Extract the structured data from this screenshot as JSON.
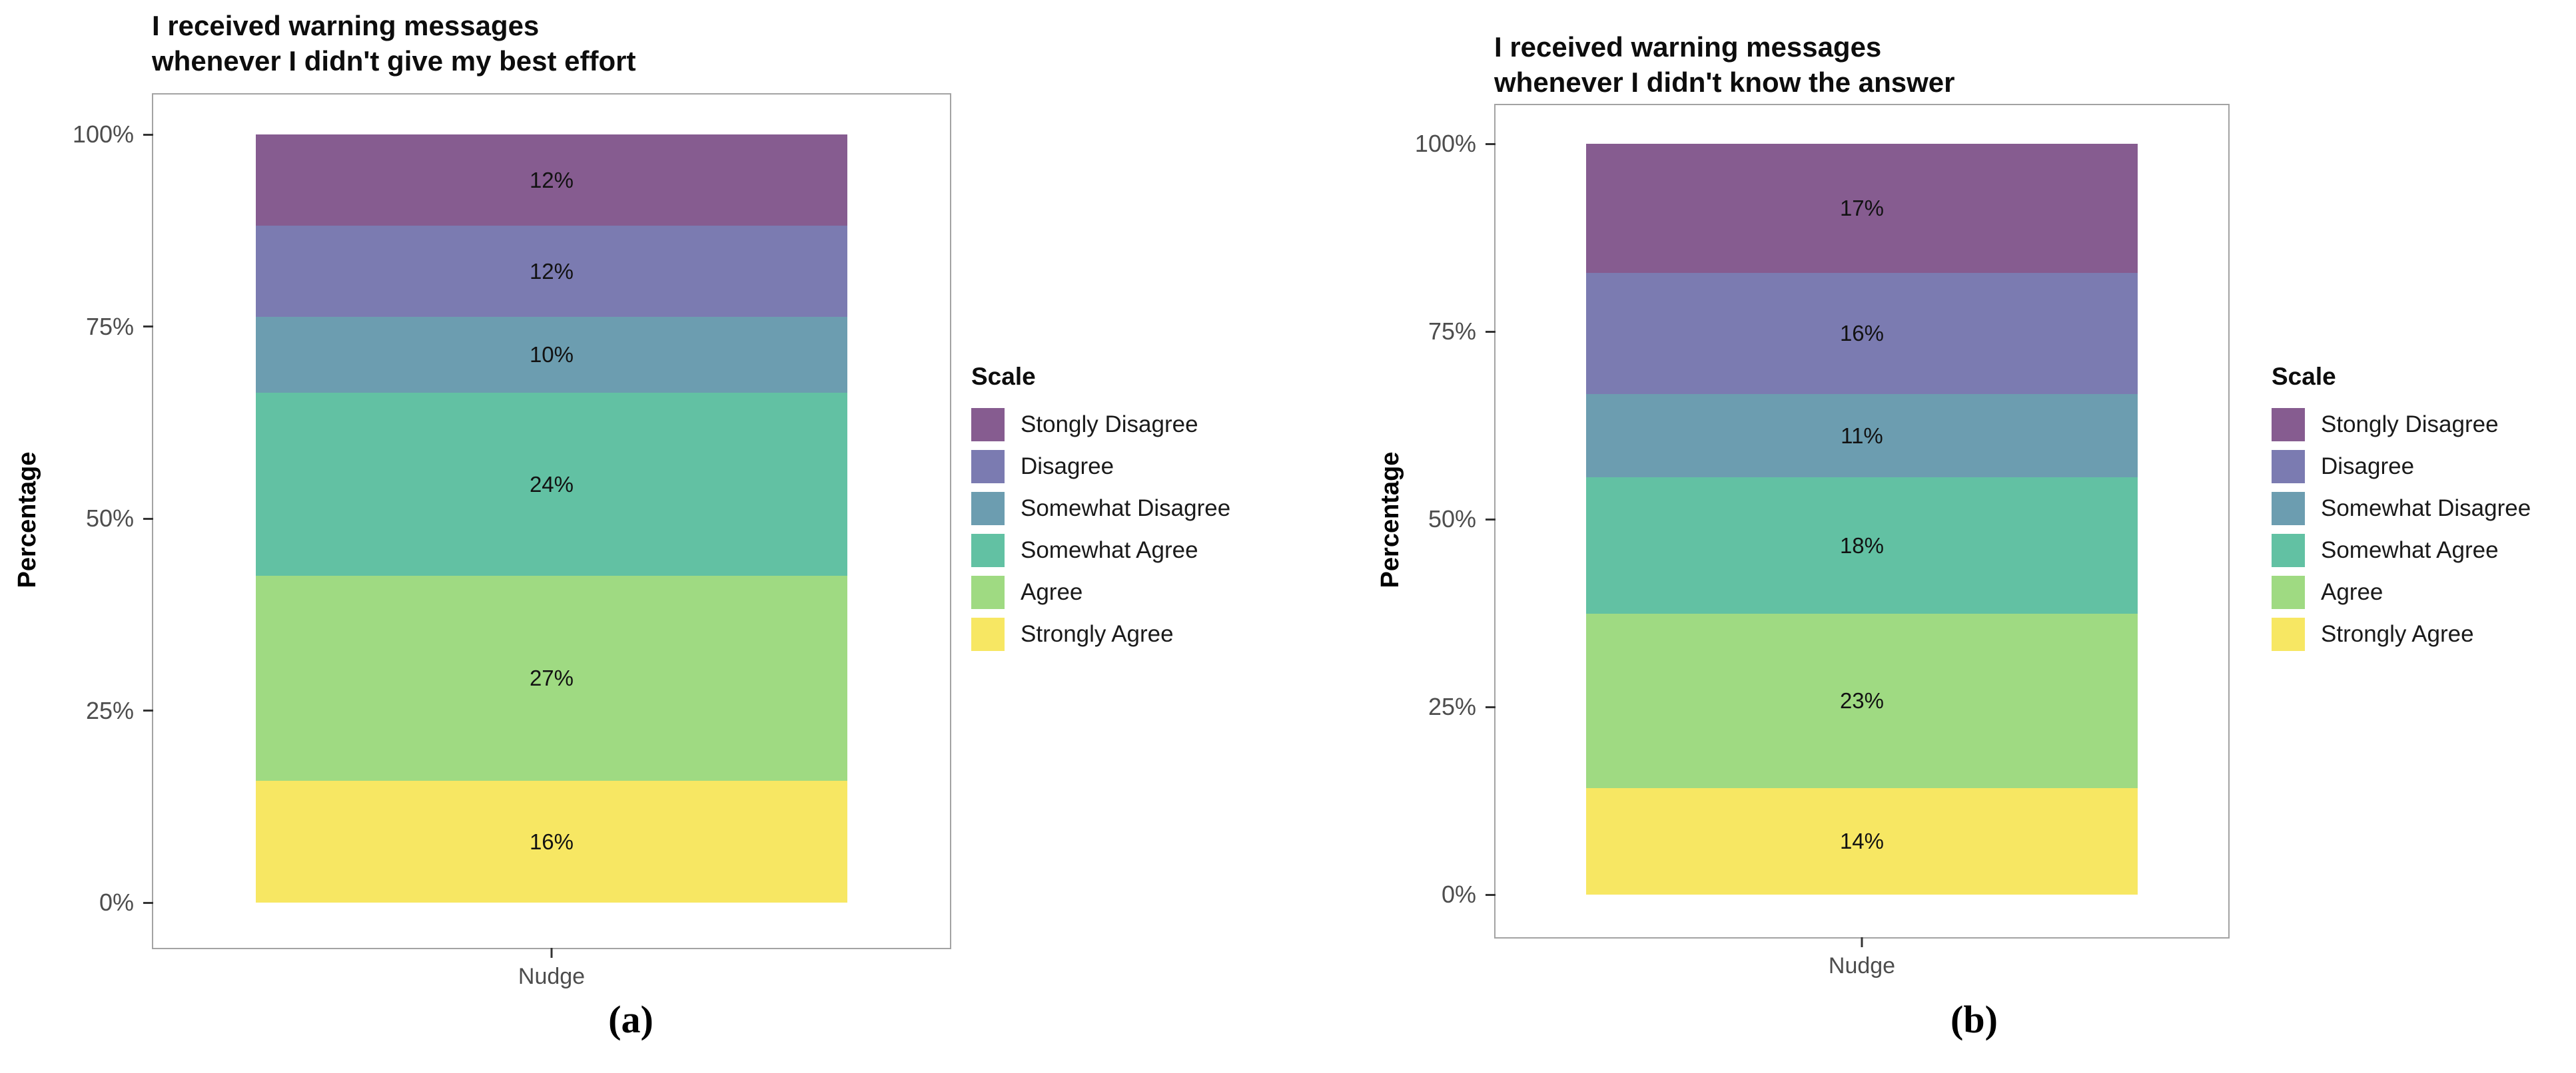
{
  "page": {
    "background": "#ffffff"
  },
  "axis": {
    "y_label": "Percentage",
    "x_tick_label": "Nudge",
    "y_ticks": [
      {
        "value": 100,
        "label": "100%"
      },
      {
        "value": 75,
        "label": "75%"
      },
      {
        "value": 50,
        "label": "50%"
      },
      {
        "value": 25,
        "label": "25%"
      },
      {
        "value": 0,
        "label": "0%"
      }
    ]
  },
  "legend": {
    "title": "Scale",
    "position": "right",
    "entries": [
      {
        "label": "Stongly Disagree",
        "color": "#865C90"
      },
      {
        "label": "Disagree",
        "color": "#7B7BB1"
      },
      {
        "label": "Somewhat Disagree",
        "color": "#6C9DB0"
      },
      {
        "label": "Somewhat Agree",
        "color": "#62C1A3"
      },
      {
        "label": "Agree",
        "color": "#9FDA82"
      },
      {
        "label": "Strongly Agree",
        "color": "#F7E763"
      }
    ]
  },
  "chart_data": [
    {
      "id": "a",
      "type": "bar",
      "stacked": true,
      "position": "fill",
      "grid": false,
      "legend_position": "right",
      "title_line1": "I received warning messages",
      "title_line2": "whenever I didn't give my best effort",
      "caption": "(a)",
      "xlabel": "",
      "ylabel": "Percentage",
      "ylim": [
        0,
        100
      ],
      "categories": [
        "Nudge"
      ],
      "series": [
        {
          "name": "Stongly Disagree",
          "value": 12,
          "label": "12%",
          "color": "#865C90"
        },
        {
          "name": "Disagree",
          "value": 12,
          "label": "12%",
          "color": "#7B7BB1"
        },
        {
          "name": "Somewhat Disagree",
          "value": 10,
          "label": "10%",
          "color": "#6C9DB0"
        },
        {
          "name": "Somewhat Agree",
          "value": 24,
          "label": "24%",
          "color": "#62C1A3"
        },
        {
          "name": "Agree",
          "value": 27,
          "label": "27%",
          "color": "#9FDA82"
        },
        {
          "name": "Strongly Agree",
          "value": 16,
          "label": "16%",
          "color": "#F7E763"
        }
      ]
    },
    {
      "id": "b",
      "type": "bar",
      "stacked": true,
      "position": "fill",
      "grid": false,
      "legend_position": "right",
      "title_line1": "I received warning messages",
      "title_line2": "whenever I didn't know the answer",
      "caption": "(b)",
      "xlabel": "",
      "ylabel": "Percentage",
      "ylim": [
        0,
        100
      ],
      "categories": [
        "Nudge"
      ],
      "series": [
        {
          "name": "Stongly Disagree",
          "value": 17,
          "label": "17%",
          "color": "#865C90"
        },
        {
          "name": "Disagree",
          "value": 16,
          "label": "16%",
          "color": "#7B7BB1"
        },
        {
          "name": "Somewhat Disagree",
          "value": 11,
          "label": "11%",
          "color": "#6C9DB0"
        },
        {
          "name": "Somewhat Agree",
          "value": 18,
          "label": "18%",
          "color": "#62C1A3"
        },
        {
          "name": "Agree",
          "value": 23,
          "label": "23%",
          "color": "#9FDA82"
        },
        {
          "name": "Strongly Agree",
          "value": 14,
          "label": "14%",
          "color": "#F7E763"
        }
      ]
    }
  ]
}
